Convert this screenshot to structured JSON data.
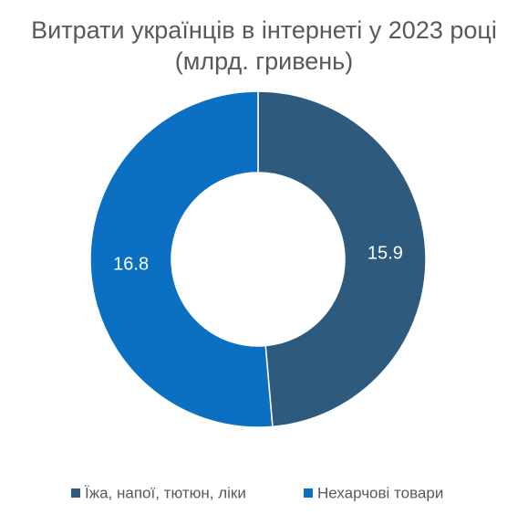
{
  "chart_data": {
    "type": "donut",
    "title": "Витрати українців в інтернеті у 2023 році (млрд. гривень)",
    "categories": [
      "Їжа, напої, тютюн, ліки",
      "Нехарчові товари"
    ],
    "values": [
      15.9,
      16.8
    ],
    "colors": [
      "#2e5a7e",
      "#0b70c2"
    ],
    "legend": "bottom"
  }
}
